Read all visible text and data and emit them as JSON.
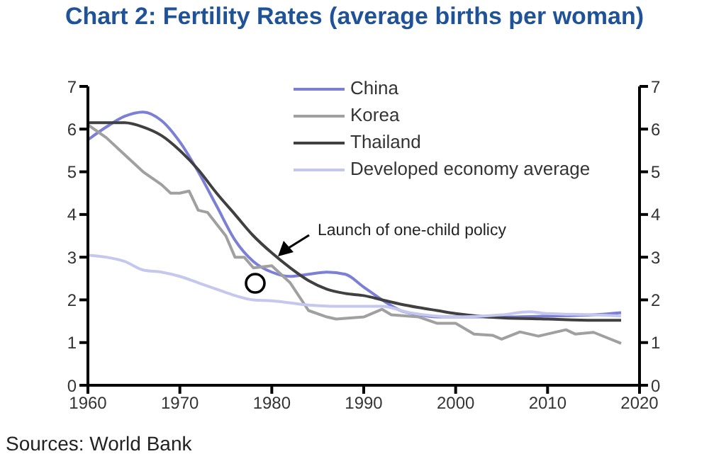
{
  "chart_data": {
    "type": "line",
    "title": "Chart 2: Fertility Rates (average births per woman)",
    "xlim": [
      1960,
      2020
    ],
    "xticks": [
      1960,
      1970,
      1980,
      1990,
      2000,
      2010,
      2020
    ],
    "ylim": [
      0,
      7
    ],
    "yticks": [
      0,
      1,
      2,
      3,
      4,
      5,
      6,
      7
    ],
    "y2lim": [
      0,
      7
    ],
    "y2ticks": [
      0,
      1,
      2,
      3,
      4,
      5,
      6,
      7
    ],
    "grid": false,
    "legend": "top right",
    "marker": "none",
    "annotations": [
      "Launch of one-child policy",
      "Sources: World Bank"
    ],
    "series": [
      {
        "name": "China",
        "color": "#7b7fd6",
        "x": [
          1960,
          1962,
          1964,
          1966,
          1968,
          1970,
          1972,
          1974,
          1976,
          1978,
          1980,
          1982,
          1984,
          1986,
          1988,
          1990,
          1992,
          1994,
          1996,
          1998,
          2000,
          2005,
          2010,
          2015,
          2018
        ],
        "values": [
          5.75,
          6.05,
          6.3,
          6.4,
          6.2,
          5.7,
          5.0,
          4.2,
          3.4,
          2.9,
          2.65,
          2.55,
          2.6,
          2.65,
          2.6,
          2.3,
          2.0,
          1.75,
          1.65,
          1.6,
          1.6,
          1.6,
          1.62,
          1.65,
          1.7
        ]
      },
      {
        "name": "Korea",
        "color": "#a0a0a0",
        "x": [
          1960,
          1962,
          1964,
          1966,
          1968,
          1969,
          1970,
          1971,
          1972,
          1973,
          1975,
          1976,
          1977,
          1978,
          1980,
          1982,
          1984,
          1986,
          1987,
          1990,
          1992,
          1993,
          1996,
          1998,
          2000,
          2002,
          2004,
          2005,
          2007,
          2009,
          2012,
          2013,
          2015,
          2018
        ],
        "values": [
          6.1,
          5.8,
          5.4,
          5.0,
          4.7,
          4.5,
          4.5,
          4.55,
          4.1,
          4.05,
          3.5,
          3.0,
          3.0,
          2.75,
          2.8,
          2.4,
          1.75,
          1.6,
          1.55,
          1.6,
          1.78,
          1.65,
          1.6,
          1.45,
          1.45,
          1.2,
          1.17,
          1.08,
          1.25,
          1.15,
          1.3,
          1.2,
          1.24,
          0.98
        ]
      },
      {
        "name": "Thailand",
        "color": "#404040",
        "x": [
          1960,
          1964,
          1966,
          1968,
          1970,
          1972,
          1974,
          1976,
          1978,
          1980,
          1982,
          1984,
          1986,
          1988,
          1990,
          1992,
          1994,
          1996,
          1998,
          2000,
          2005,
          2010,
          2015,
          2018
        ],
        "values": [
          6.15,
          6.15,
          6.05,
          5.85,
          5.5,
          5.05,
          4.5,
          4.0,
          3.5,
          3.1,
          2.75,
          2.45,
          2.25,
          2.15,
          2.1,
          2.0,
          1.9,
          1.82,
          1.75,
          1.68,
          1.58,
          1.55,
          1.52,
          1.52
        ]
      },
      {
        "name": "Developed economy average",
        "color": "#c5c8ee",
        "x": [
          1960,
          1962,
          1964,
          1966,
          1968,
          1970,
          1972,
          1974,
          1976,
          1978,
          1980,
          1984,
          1987,
          1990,
          1992,
          1995,
          2000,
          2005,
          2008,
          2010,
          2015,
          2018
        ],
        "values": [
          3.05,
          3.0,
          2.9,
          2.7,
          2.65,
          2.55,
          2.4,
          2.25,
          2.1,
          2.0,
          1.98,
          1.88,
          1.85,
          1.85,
          1.85,
          1.7,
          1.6,
          1.65,
          1.72,
          1.68,
          1.65,
          1.62
        ]
      }
    ]
  }
}
